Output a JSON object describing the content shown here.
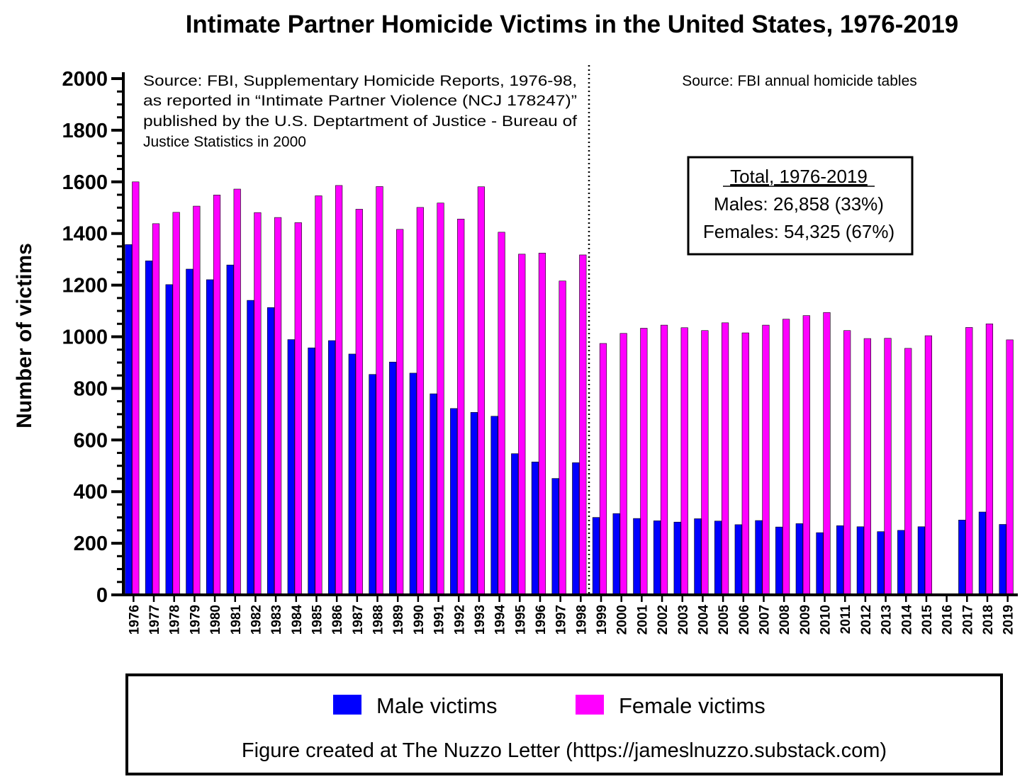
{
  "chart_data": {
    "type": "bar",
    "title": "Intimate Partner Homicide Victims in the United States, 1976-2019",
    "ylabel": "Number of victims",
    "ylim": [
      0,
      2000
    ],
    "yticks": [
      "0",
      "200",
      "400",
      "600",
      "800",
      "1000",
      "1200",
      "1400",
      "1600",
      "1800",
      "2000"
    ],
    "categories": [
      "1976",
      "1977",
      "1978",
      "1979",
      "1980",
      "1981",
      "1982",
      "1983",
      "1984",
      "1985",
      "1986",
      "1987",
      "1988",
      "1989",
      "1990",
      "1991",
      "1992",
      "1993",
      "1994",
      "1995",
      "1996",
      "1997",
      "1998",
      "1999",
      "2000",
      "2001",
      "2002",
      "2003",
      "2004",
      "2005",
      "2006",
      "2007",
      "2008",
      "2009",
      "2010",
      "2011",
      "2012",
      "2013",
      "2014",
      "2015",
      "2016",
      "2017",
      "2018",
      "2019"
    ],
    "series": [
      {
        "name": "Male victims",
        "color": "#0000ff",
        "values": [
          1357,
          1294,
          1202,
          1262,
          1221,
          1278,
          1141,
          1113,
          989,
          957,
          985,
          933,
          854,
          902,
          859,
          779,
          722,
          707,
          692,
          547,
          515,
          451,
          512,
          300,
          315,
          296,
          287,
          282,
          295,
          286,
          272,
          288,
          263,
          276,
          241,
          268,
          264,
          245,
          250,
          264,
          null,
          290,
          321,
          273
        ]
      },
      {
        "name": "Female victims",
        "color": "#ff00ff",
        "values": [
          1600,
          1438,
          1482,
          1506,
          1549,
          1572,
          1481,
          1462,
          1442,
          1546,
          1586,
          1494,
          1582,
          1416,
          1501,
          1518,
          1456,
          1581,
          1405,
          1320,
          1324,
          1216,
          1317,
          974,
          1013,
          1033,
          1045,
          1035,
          1024,
          1054,
          1015,
          1045,
          1068,
          1082,
          1094,
          1024,
          993,
          994,
          955,
          1004,
          null,
          1036,
          1050,
          988
        ]
      }
    ],
    "annotations": {
      "left_source": [
        "Source: FBI, Supplementary Homicide Reports, 1976-98,",
        "as reported in “Intimate Partner Violence (NCJ 178247)”",
        "published by the U.S. Deptartment of Justice - Bureau of",
        "Justice Statistics in 2000"
      ],
      "right_source": "Source: FBI annual homicide tables",
      "total_box": {
        "heading": "Total, 1976-2019",
        "males": "Males: 26,858 (33%)",
        "females": "Females: 54,325 (67%)"
      },
      "divider_after": "1998"
    },
    "legend_position": "bottom",
    "grid": false
  },
  "footer": {
    "credit": "Figure created at The Nuzzo Letter (https://jameslnuzzo.substack.com)"
  }
}
